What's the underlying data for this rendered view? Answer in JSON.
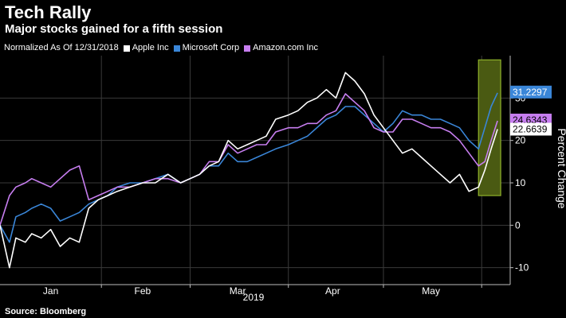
{
  "header": {
    "title": "Tech Rally",
    "subtitle": "Major stocks gained for a fifth session"
  },
  "legend": {
    "note": "Normalized As Of 12/31/2018",
    "items": [
      {
        "label": "Apple Inc",
        "color": "#ffffff"
      },
      {
        "label": "Microsoft Corp",
        "color": "#3a86d8"
      },
      {
        "label": "Amazon.com Inc",
        "color": "#c77ef0"
      }
    ]
  },
  "footer": {
    "source": "Source: Bloomberg"
  },
  "chart_data": {
    "type": "line",
    "ylabel": "Percent Change",
    "xlabel": "2019",
    "ylim": [
      -14,
      40
    ],
    "yticks": [
      -10,
      0,
      10,
      20,
      30
    ],
    "grid": true,
    "y_axis_side": "right",
    "x_months": [
      "Jan",
      "Feb",
      "Mar",
      "Apr",
      "May"
    ],
    "x": [
      "2018-12-31",
      "2019-01-03",
      "2019-01-05",
      "2019-01-08",
      "2019-01-10",
      "2019-01-13",
      "2019-01-16",
      "2019-01-19",
      "2019-01-22",
      "2019-01-25",
      "2019-01-28",
      "2019-01-31",
      "2019-02-03",
      "2019-02-06",
      "2019-02-10",
      "2019-02-14",
      "2019-02-18",
      "2019-02-22",
      "2019-02-26",
      "2019-03-01",
      "2019-03-04",
      "2019-03-07",
      "2019-03-10",
      "2019-03-13",
      "2019-03-16",
      "2019-03-19",
      "2019-03-22",
      "2019-03-25",
      "2019-03-28",
      "2019-04-01",
      "2019-04-04",
      "2019-04-07",
      "2019-04-10",
      "2019-04-13",
      "2019-04-16",
      "2019-04-19",
      "2019-04-22",
      "2019-04-25",
      "2019-04-28",
      "2019-05-01",
      "2019-05-04",
      "2019-05-07",
      "2019-05-10",
      "2019-05-13",
      "2019-05-16",
      "2019-05-19",
      "2019-05-22",
      "2019-05-25",
      "2019-05-28",
      "2019-05-31",
      "2019-06-02",
      "2019-06-04",
      "2019-06-06"
    ],
    "series": [
      {
        "name": "Apple Inc",
        "color": "#ffffff",
        "values": [
          0,
          -10,
          -3,
          -4,
          -2,
          -3,
          -1,
          -5,
          -3,
          -4,
          4,
          6,
          7,
          8,
          9,
          10,
          10,
          12,
          10,
          11,
          12,
          14,
          15,
          20,
          18,
          19,
          20,
          21,
          25,
          26,
          27,
          29,
          30,
          32,
          30,
          36,
          34,
          31,
          26,
          23,
          20,
          17,
          18,
          16,
          14,
          12,
          10,
          12,
          8,
          9,
          13,
          18,
          22.66
        ]
      },
      {
        "name": "Microsoft Corp",
        "color": "#3a86d8",
        "values": [
          0,
          -4,
          2,
          3,
          4,
          5,
          4,
          1,
          2,
          3,
          5,
          6,
          7,
          9,
          10,
          10,
          11,
          12,
          10,
          11,
          12,
          14,
          14,
          17,
          15,
          15,
          16,
          17,
          18,
          19,
          20,
          21,
          23,
          25,
          26,
          28,
          28,
          26,
          24,
          22,
          24,
          27,
          26,
          26,
          25,
          25,
          24,
          23,
          20,
          18,
          23,
          28,
          31.23
        ]
      },
      {
        "name": "Amazon.com Inc",
        "color": "#c77ef0",
        "values": [
          0,
          7,
          9,
          10,
          11,
          10,
          9,
          11,
          13,
          14,
          6,
          7,
          8,
          9,
          9,
          10,
          11,
          11,
          10,
          11,
          12,
          15,
          15,
          19,
          17,
          18,
          19,
          19,
          22,
          23,
          23,
          24,
          24,
          26,
          27,
          31,
          29,
          27,
          23,
          22,
          22,
          25,
          25,
          24,
          23,
          23,
          22,
          20,
          17,
          14,
          15,
          20,
          24.63
        ]
      }
    ],
    "end_labels": [
      {
        "series": "Microsoft Corp",
        "text": "31.2297",
        "bg": "#3a86d8",
        "fg": "#ffffff"
      },
      {
        "series": "Amazon.com Inc",
        "text": "24.6343",
        "bg": "#c77ef0",
        "fg": "#000000"
      },
      {
        "series": "Apple Inc",
        "text": "22.6639",
        "bg": "#ffffff",
        "fg": "#000000"
      }
    ],
    "highlight": {
      "from": "2019-05-31",
      "to": "2019-06-06",
      "fill": "#4a5a12",
      "stroke": "#8fb22a"
    }
  }
}
